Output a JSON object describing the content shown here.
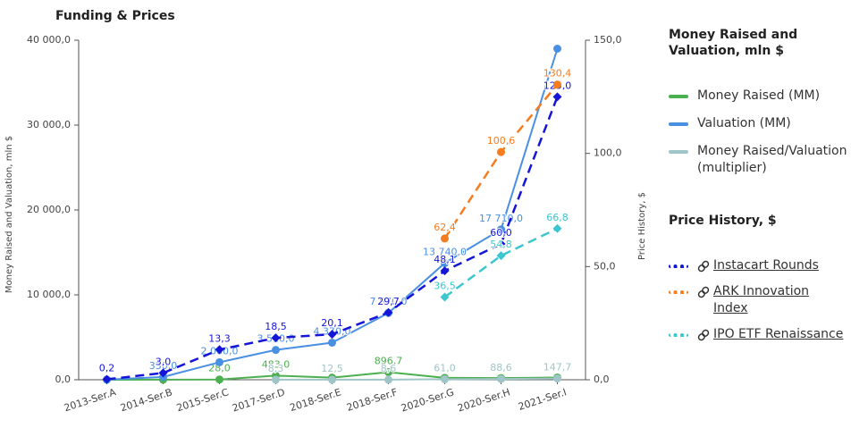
{
  "chart_data": {
    "type": "line",
    "title": "Funding & Prices",
    "y_label": "Money Raised and Valuation, mln $",
    "y2_label": "Price History, $",
    "categories": [
      "2013-Ser.A",
      "2014-Ser.B",
      "2015-Ser.C",
      "2017-Ser.D",
      "2018-Ser.E",
      "2018-Ser.F",
      "2020-Ser.G",
      "2020-Ser.H",
      "2021-Ser.I"
    ],
    "ylim": [
      0,
      40000
    ],
    "yticks": [
      {
        "value": 0,
        "label": "0,0"
      },
      {
        "value": 10000,
        "label": "10 000,0"
      },
      {
        "value": 20000,
        "label": "20 000,0"
      },
      {
        "value": 30000,
        "label": "30 000,0"
      },
      {
        "value": 40000,
        "label": "40 000,0"
      }
    ],
    "y2lim": [
      0,
      150
    ],
    "y2ticks": [
      {
        "value": 0,
        "label": "0,0"
      },
      {
        "value": 50,
        "label": "50,0"
      },
      {
        "value": 100,
        "label": "100,0"
      },
      {
        "value": 150,
        "label": "150,0"
      }
    ],
    "series": [
      {
        "name": "Money Raised (MM)",
        "color": "#4caf50",
        "style": "solid",
        "marker": "circle",
        "values": [
          2.3,
          8.5,
          28,
          483,
          250,
          896.7,
          225,
          200,
          265
        ],
        "value_labels": [
          null,
          null,
          "28,0",
          "483,0",
          null,
          "896,7",
          null,
          null,
          null
        ]
      },
      {
        "name": "Valuation (MM)",
        "color": "#4a90e2",
        "style": "solid",
        "marker": "circle",
        "values": [
          10,
          330,
          2060,
          3510,
          4370,
          7870,
          13740,
          17710,
          39000
        ],
        "value_labels": [
          null,
          "330,0",
          "2 060,0",
          "3 510,0",
          "4 370,0",
          "7 870,0",
          "13 740,0",
          "17 710,0",
          null
        ]
      },
      {
        "name": "Money Raised/Valuation (multiplier)",
        "color": "#9fc5c8",
        "style": "solid",
        "marker": "circle",
        "values": [
          null,
          null,
          null,
          8.3,
          12.5,
          8.6,
          61,
          88.6,
          147.7
        ],
        "value_labels": [
          null,
          null,
          null,
          "8,3",
          "12,5",
          "8,6",
          "61,0",
          "88,6",
          "147,7"
        ]
      },
      {
        "name": "Instacart Rounds",
        "color": "#1515d8",
        "style": "dashed",
        "marker": "diamond",
        "axis": "y2",
        "values": [
          0.2,
          3.0,
          13.3,
          18.5,
          20.1,
          29.7,
          48.1,
          60.0,
          125.0
        ],
        "value_labels": [
          "0,2",
          "3,0",
          "13,3",
          "18,5",
          "20,1",
          "29,7",
          "48,1",
          "60,0",
          "125,0"
        ]
      },
      {
        "name": "ARK Innovation Index",
        "color": "#f57c20",
        "style": "dashed",
        "marker": "circle",
        "axis": "y2",
        "values": [
          null,
          null,
          null,
          null,
          null,
          null,
          62.4,
          100.6,
          130.4
        ],
        "value_labels": [
          null,
          null,
          null,
          null,
          null,
          null,
          "62,4",
          "100,6",
          "130,4"
        ]
      },
      {
        "name": "IPO ETF Renaissance",
        "color": "#3cc6cf",
        "style": "dashed",
        "marker": "diamond",
        "axis": "y2",
        "values": [
          null,
          null,
          null,
          null,
          null,
          null,
          36.5,
          54.8,
          66.8
        ],
        "value_labels": [
          null,
          null,
          null,
          null,
          null,
          null,
          "36,5",
          "54,8",
          "66,8"
        ]
      }
    ]
  }
}
